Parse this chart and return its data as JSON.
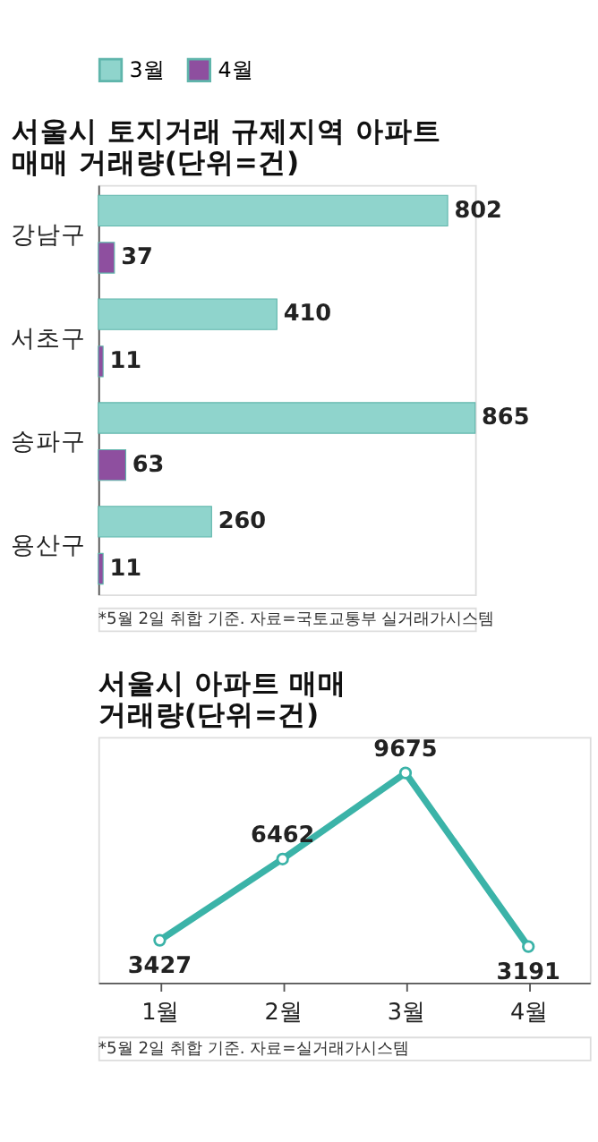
{
  "chart_data": [
    {
      "type": "bar",
      "orientation": "horizontal",
      "title": "서울시 토지거래 규제지역 아파트 매매 거래량(단위=건)",
      "categories": [
        "강남구",
        "서초구",
        "송파구",
        "용산구"
      ],
      "series": [
        {
          "name": "3월",
          "color": "#8fd4cc",
          "values": [
            802,
            410,
            865,
            260
          ]
        },
        {
          "name": "4월",
          "color": "#8e4f9f",
          "values": [
            37,
            11,
            63,
            11
          ]
        }
      ],
      "data_labels": true,
      "legend": "top left",
      "annotations": [
        "*5월 2일 취합 기준. 자료=국토교통부 실거래가시스템"
      ]
    },
    {
      "type": "line",
      "title": "서울시 아파트 매매 거래량(단위=건)",
      "categories": [
        "1월",
        "2월",
        "3월",
        "4월"
      ],
      "series": [
        {
          "color": "#3bb3a8",
          "values": [
            3427,
            6462,
            9675,
            3191
          ]
        }
      ],
      "marker": "circle",
      "data_labels": true,
      "annotations": [
        "*5월 2일 취합 기준. 자료=실거래가시스템"
      ]
    }
  ]
}
